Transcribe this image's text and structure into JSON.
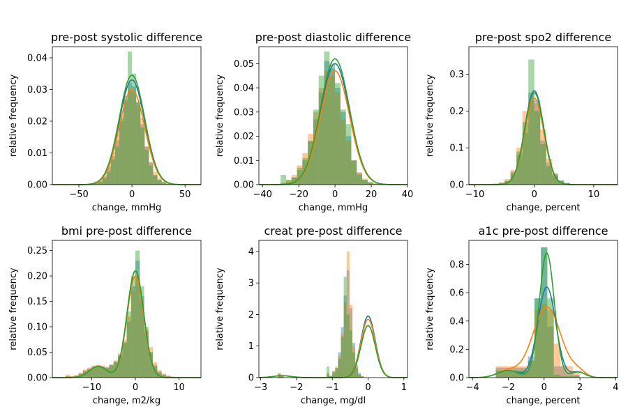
{
  "colors": {
    "series1": "#1f77b4",
    "series2": "#ff7f0e",
    "series3": "#2ca02c"
  },
  "chart_data": [
    {
      "type": "histogram+kde",
      "title": "pre-post systolic difference",
      "xlabel": "change, mmHg",
      "ylabel": "relative frequency",
      "xlim": [
        -75,
        65
      ],
      "ylim": [
        0,
        0.0435
      ],
      "xticks": [
        -50,
        0,
        50
      ],
      "xtick_labels": [
        "−50",
        "0",
        "50"
      ],
      "yticks": [
        0,
        0.01,
        0.02,
        0.03,
        0.04
      ],
      "ytick_labels": [
        "0.00",
        "0.01",
        "0.02",
        "0.03",
        "0.04"
      ],
      "kde": {
        "center": 0,
        "sd": 12,
        "peaks": [
          0.033,
          0.03,
          0.0345
        ]
      },
      "hist": {
        "start": -40,
        "width": 4,
        "series": [
          [
            0.0003,
            0.0006,
            0.001,
            0.0025,
            0.0055,
            0.009,
            0.014,
            0.02,
            0.027,
            0.032,
            0.031,
            0.026,
            0.019,
            0.012,
            0.007,
            0.003,
            0.0015,
            0.0008,
            0.0003,
            0.0001
          ],
          [
            0.0005,
            0.001,
            0.0015,
            0.003,
            0.006,
            0.01,
            0.016,
            0.022,
            0.026,
            0.03,
            0.029,
            0.025,
            0.021,
            0.012,
            0.007,
            0.004,
            0.002,
            0.001,
            0.0005,
            0.0002
          ],
          [
            0.0002,
            0.0005,
            0.001,
            0.002,
            0.004,
            0.008,
            0.012,
            0.021,
            0.028,
            0.042,
            0.035,
            0.026,
            0.018,
            0.011,
            0.006,
            0.003,
            0.0015,
            0.0006,
            0.0002,
            0.0001
          ]
        ]
      }
    },
    {
      "type": "histogram+kde",
      "title": "pre-post diastolic difference",
      "xlabel": "change, mmHg",
      "ylabel": "relative frequency",
      "xlim": [
        -42,
        40
      ],
      "ylim": [
        0,
        0.057
      ],
      "xticks": [
        -40,
        -20,
        0,
        20,
        40
      ],
      "xtick_labels": [
        "−40",
        "−20",
        "0",
        "20",
        "40"
      ],
      "yticks": [
        0,
        0.01,
        0.02,
        0.03,
        0.04,
        0.05
      ],
      "ytick_labels": [
        "0.00",
        "0.01",
        "0.02",
        "0.03",
        "0.04",
        "0.05"
      ],
      "kde": {
        "center": 0,
        "sd": 8,
        "peaks": [
          0.05,
          0.047,
          0.052
        ]
      },
      "hist": {
        "start": -30,
        "width": 3,
        "series": [
          [
            0.0005,
            0.001,
            0.003,
            0.006,
            0.01,
            0.018,
            0.027,
            0.038,
            0.051,
            0.048,
            0.04,
            0.03,
            0.02,
            0.01,
            0.005,
            0.002,
            0.001,
            0.0004,
            0.0002,
            0.0001
          ],
          [
            0.0008,
            0.002,
            0.004,
            0.008,
            0.013,
            0.021,
            0.03,
            0.04,
            0.047,
            0.045,
            0.038,
            0.027,
            0.018,
            0.01,
            0.005,
            0.0025,
            0.001,
            0.0005,
            0.0002,
            0.0001
          ],
          [
            0.004,
            0.002,
            0.003,
            0.007,
            0.011,
            0.018,
            0.031,
            0.045,
            0.055,
            0.05,
            0.042,
            0.031,
            0.025,
            0.01,
            0.004,
            0.002,
            0.001,
            0.0004,
            0.0002,
            0.0001
          ]
        ]
      }
    },
    {
      "type": "histogram+kde",
      "title": "pre-post spo2 difference",
      "xlabel": "change, percent",
      "ylabel": "relative frequency",
      "xlim": [
        -11,
        14
      ],
      "ylim": [
        0,
        0.375
      ],
      "xticks": [
        -10,
        0,
        10
      ],
      "xtick_labels": [
        "−10",
        "0",
        "10"
      ],
      "yticks": [
        0,
        0.1,
        0.2,
        0.3
      ],
      "ytick_labels": [
        "0.0",
        "0.1",
        "0.2",
        "0.3"
      ],
      "kde": {
        "center": 0,
        "sd": 1.6,
        "peaks": [
          0.255,
          0.235,
          0.25
        ]
      },
      "hist": {
        "start": -7,
        "width": 1,
        "series": [
          [
            0.002,
            0.005,
            0.01,
            0.035,
            0.08,
            0.14,
            0.25,
            0.23,
            0.12,
            0.06,
            0.03,
            0.012,
            0.005,
            0.002
          ],
          [
            0.003,
            0.006,
            0.015,
            0.04,
            0.1,
            0.2,
            0.23,
            0.22,
            0.15,
            0.07,
            0.03,
            0.01,
            0.004,
            0.001
          ],
          [
            0.002,
            0.004,
            0.01,
            0.03,
            0.09,
            0.17,
            0.34,
            0.2,
            0.11,
            0.05,
            0.025,
            0.01,
            0.004,
            0.001
          ]
        ]
      }
    },
    {
      "type": "histogram+kde",
      "title": "bmi pre-post difference",
      "xlabel": "change, m2/kg",
      "ylabel": "relative frequency",
      "xlim": [
        -19,
        15
      ],
      "ylim": [
        0,
        0.27
      ],
      "xticks": [
        -10,
        0,
        10
      ],
      "xtick_labels": [
        "−10",
        "0",
        "10"
      ],
      "yticks": [
        0,
        0.05,
        0.1,
        0.15,
        0.2,
        0.25
      ],
      "ytick_labels": [
        "0.00",
        "0.05",
        "0.10",
        "0.15",
        "0.20",
        "0.25"
      ],
      "kde": {
        "center": 0,
        "sd": 1.9,
        "peaks": [
          0.21,
          0.2,
          0.21
        ]
      },
      "kde_tail": {
        "center": -8.5,
        "sd": 2.0,
        "peak": 0.022
      },
      "hist": {
        "start": -16,
        "width": 1,
        "series": [
          [
            0.003,
            0.002,
            0.004,
            0.008,
            0.014,
            0.018,
            0.022,
            0.024,
            0.022,
            0.02,
            0.025,
            0.032,
            0.045,
            0.07,
            0.11,
            0.18,
            0.23,
            0.16,
            0.09,
            0.05,
            0.025,
            0.012,
            0.006,
            0.003,
            0.002,
            0.001
          ],
          [
            0.006,
            0.003,
            0.005,
            0.01,
            0.016,
            0.02,
            0.024,
            0.025,
            0.024,
            0.021,
            0.026,
            0.034,
            0.048,
            0.075,
            0.12,
            0.17,
            0.2,
            0.15,
            0.095,
            0.06,
            0.03,
            0.015,
            0.008,
            0.004,
            0.002,
            0.001
          ],
          [
            0.002,
            0.002,
            0.003,
            0.007,
            0.012,
            0.016,
            0.02,
            0.022,
            0.02,
            0.019,
            0.024,
            0.03,
            0.043,
            0.068,
            0.13,
            0.2,
            0.25,
            0.18,
            0.1,
            0.05,
            0.022,
            0.01,
            0.005,
            0.002,
            0.001,
            0.001
          ]
        ]
      }
    },
    {
      "type": "histogram+kde",
      "title": "creat pre-post difference",
      "xlabel": "change, mg/dl",
      "ylabel": "relative frequency",
      "xlim": [
        -3.05,
        1.1
      ],
      "ylim": [
        0,
        4.35
      ],
      "xticks": [
        -3,
        -2,
        -1,
        0,
        1
      ],
      "xtick_labels": [
        "−3",
        "−2",
        "−1",
        "0",
        "1"
      ],
      "yticks": [
        0,
        1,
        2,
        3,
        4
      ],
      "ytick_labels": [
        "0",
        "1",
        "2",
        "3",
        "4"
      ],
      "kde": {
        "center": 0,
        "sd": 0.2,
        "peaks": [
          1.95,
          1.85,
          1.65
        ]
      },
      "kde_tail": {
        "center": -2.4,
        "sd": 0.25,
        "peak": 0.06
      },
      "hist": {
        "start": -3.0,
        "width": 0.08,
        "series": [
          [
            0,
            0,
            0,
            0,
            0,
            0,
            0.1,
            0.05,
            0,
            0,
            0,
            0,
            0,
            0,
            0,
            0,
            0,
            0,
            0,
            0,
            0,
            0,
            0,
            0.1,
            0.05,
            0.15,
            0.3,
            0.8,
            1.6,
            2.6,
            3.4,
            2.2,
            1.1,
            0.4,
            0.15,
            0.05,
            0,
            0,
            0,
            0,
            0,
            0,
            0,
            0,
            0,
            0,
            0,
            0,
            0,
            0,
            0,
            0
          ],
          [
            0,
            0,
            0,
            0,
            0,
            0,
            0.15,
            0.1,
            0,
            0,
            0,
            0,
            0,
            0,
            0,
            0,
            0,
            0,
            0,
            0,
            0,
            0,
            0,
            0.15,
            0.05,
            0.2,
            0.35,
            0.7,
            1.4,
            2.4,
            4.0,
            2.3,
            1.0,
            0.35,
            0.1,
            0.04,
            0,
            0,
            0,
            0,
            0,
            0,
            0,
            0,
            0,
            0,
            0,
            0,
            0,
            0,
            0,
            0
          ],
          [
            0,
            0,
            0,
            0,
            0,
            0,
            0.12,
            0.08,
            0,
            0,
            0,
            0,
            0,
            0,
            0,
            0,
            0,
            0,
            0,
            0,
            0,
            0,
            0,
            0.35,
            0.05,
            0.2,
            0.3,
            0.6,
            1.3,
            3.2,
            2.0,
            1.5,
            0.8,
            0.3,
            0.1,
            0.03,
            0,
            0,
            0,
            0,
            0,
            0,
            0,
            0,
            0,
            0,
            0,
            0,
            0,
            0,
            0,
            0
          ]
        ]
      }
    },
    {
      "type": "histogram+kde",
      "title": "a1c pre-post difference",
      "xlabel": "change, percent",
      "ylabel": "relative frequency",
      "xlim": [
        -4.2,
        4.1
      ],
      "ylim": [
        0,
        0.97
      ],
      "xticks": [
        -4,
        -2,
        0,
        2,
        4
      ],
      "xtick_labels": [
        "−4",
        "−2",
        "0",
        "2",
        "4"
      ],
      "yticks": [
        0,
        0.2,
        0.4,
        0.6,
        0.8
      ],
      "ytick_labels": [
        "0.0",
        "0.2",
        "0.4",
        "0.6",
        "0.8"
      ],
      "kde": {
        "center": 0.15,
        "sd": [
          0.5,
          0.78,
          0.42
        ],
        "peaks": [
          0.64,
          0.5,
          0.88
        ]
      },
      "kde_tail": {
        "center": -2.0,
        "sd": 0.6,
        "peak": 0.05
      },
      "kde_tail_right": {
        "center": 1.9,
        "sd": 0.4,
        "peak": 0.04
      },
      "hist": {
        "start": -2.7,
        "width": 0.36,
        "series": [
          [
            0.07,
            0.07,
            0.07,
            0.07,
            0.07,
            0.15,
            0.56,
            0.92,
            0.36,
            0.08,
            0.08,
            0.04,
            0.02
          ],
          [
            0.08,
            0.08,
            0.08,
            0.08,
            0.08,
            0.12,
            0.48,
            0.52,
            0.48,
            0.24,
            0.08,
            0.08,
            0.04
          ],
          [
            0.05,
            0.05,
            0.05,
            0.05,
            0.05,
            0.12,
            0.56,
            0.92,
            0.56,
            0.02,
            0.01,
            0.01,
            0.01
          ]
        ]
      }
    }
  ]
}
